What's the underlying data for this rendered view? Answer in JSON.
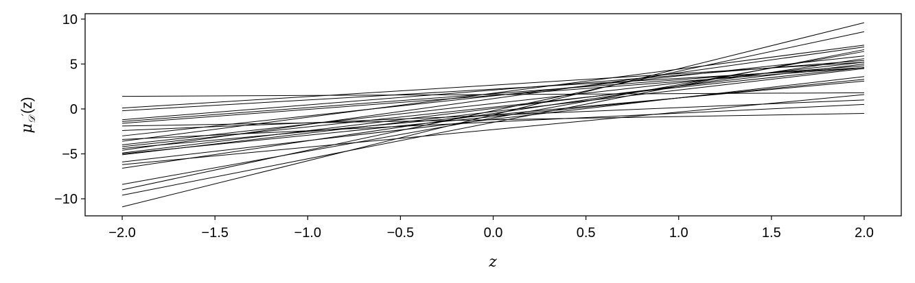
{
  "chart_data": {
    "type": "line",
    "title": "",
    "xlabel": "z",
    "ylabel": {
      "main": "μ",
      "sub": "𝒟",
      "prime": "′",
      "arg": "(z)"
    },
    "xlim": [
      -2.2,
      2.2
    ],
    "ylim": [
      -11.9,
      10.6
    ],
    "xticks": [
      -2.0,
      -1.5,
      -1.0,
      -0.5,
      0.0,
      0.5,
      1.0,
      1.5,
      2.0
    ],
    "xtick_labels": [
      "−2.0",
      "−1.5",
      "−1.0",
      "−0.5",
      "0.0",
      "0.5",
      "1.0",
      "1.5",
      "2.0"
    ],
    "yticks": [
      10,
      5,
      0,
      -5,
      -10
    ],
    "ytick_labels": [
      "10",
      "5",
      "0",
      "−5",
      "−10"
    ],
    "grid": false,
    "line_color": "#000000",
    "series": [
      {
        "x": [
          -2,
          2
        ],
        "y": [
          1.4,
          1.8
        ]
      },
      {
        "x": [
          -2,
          2
        ],
        "y": [
          0.1,
          5.2
        ]
      },
      {
        "x": [
          -2,
          2
        ],
        "y": [
          -0.2,
          4.6
        ]
      },
      {
        "x": [
          -2,
          2
        ],
        "y": [
          -1.2,
          5.4
        ]
      },
      {
        "x": [
          -2,
          2
        ],
        "y": [
          -1.4,
          4.8
        ]
      },
      {
        "x": [
          -2,
          2
        ],
        "y": [
          -1.6,
          4.6
        ]
      },
      {
        "x": [
          -2,
          2
        ],
        "y": [
          -1.9,
          -0.5
        ]
      },
      {
        "x": [
          -2,
          2
        ],
        "y": [
          -2.4,
          1.0
        ]
      },
      {
        "x": [
          -2,
          2
        ],
        "y": [
          -3.0,
          5.9
        ]
      },
      {
        "x": [
          -2,
          2
        ],
        "y": [
          -3.4,
          0.5
        ]
      },
      {
        "x": [
          -2,
          2
        ],
        "y": [
          -3.6,
          7.1
        ]
      },
      {
        "x": [
          -2,
          2
        ],
        "y": [
          -4.0,
          5.2
        ]
      },
      {
        "x": [
          -2,
          2
        ],
        "y": [
          -4.2,
          4.6
        ]
      },
      {
        "x": [
          -2,
          2
        ],
        "y": [
          -4.4,
          3.1
        ]
      },
      {
        "x": [
          -2,
          2
        ],
        "y": [
          -4.6,
          6.9
        ]
      },
      {
        "x": [
          -2,
          2
        ],
        "y": [
          -4.9,
          5.0
        ]
      },
      {
        "x": [
          -2,
          2
        ],
        "y": [
          -5.1,
          4.5
        ]
      },
      {
        "x": [
          -2,
          2
        ],
        "y": [
          -5.9,
          3.6
        ]
      },
      {
        "x": [
          -2,
          2
        ],
        "y": [
          -6.2,
          1.6
        ]
      },
      {
        "x": [
          -2,
          2
        ],
        "y": [
          -6.6,
          5.6
        ]
      },
      {
        "x": [
          -2,
          2
        ],
        "y": [
          -8.4,
          6.4
        ]
      },
      {
        "x": [
          -2,
          2
        ],
        "y": [
          -9.0,
          8.6
        ]
      },
      {
        "x": [
          -2,
          2
        ],
        "y": [
          -9.6,
          6.6
        ]
      },
      {
        "x": [
          -2,
          2
        ],
        "y": [
          -10.9,
          9.6
        ]
      },
      {
        "x": [
          -2,
          2
        ],
        "y": [
          -5.0,
          3.3
        ]
      }
    ]
  }
}
